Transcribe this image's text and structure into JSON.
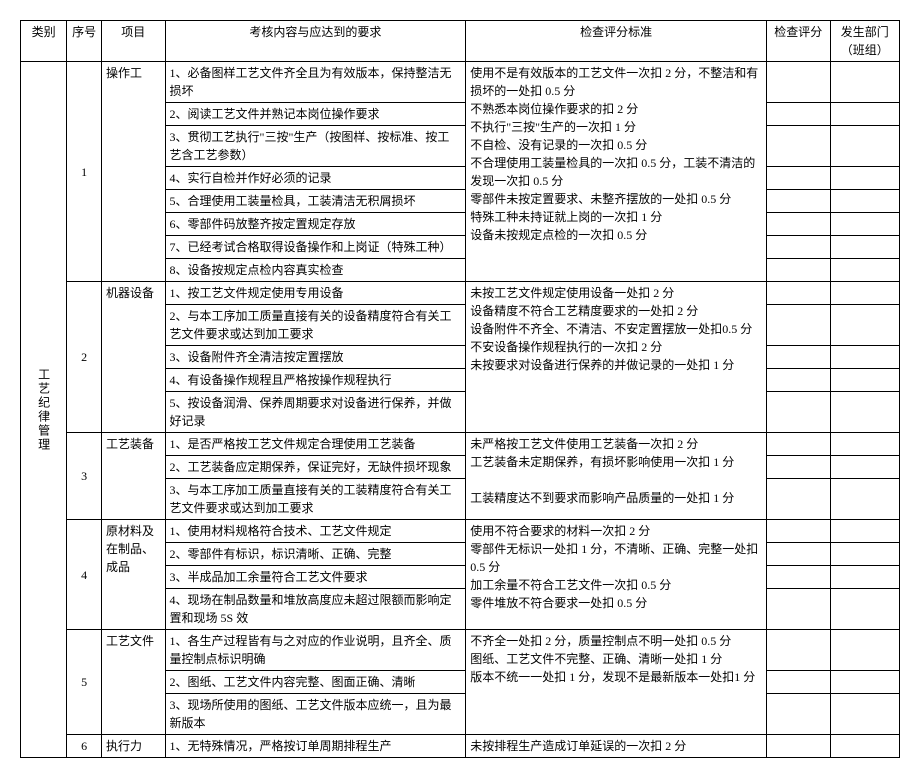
{
  "headers": {
    "category": "类别",
    "seq": "序号",
    "project": "项目",
    "requirement": "考核内容与应达到的要求",
    "standard": "检查评分标准",
    "score": "检查评分",
    "dept": "发生部门（班组）"
  },
  "category": "工艺纪律管理",
  "sections": [
    {
      "seq": "1",
      "project": "操作工",
      "reqs": [
        "1、必备图样工艺文件齐全且为有效版本，保持整洁无损坏",
        "2、阅读工艺文件并熟记本岗位操作要求",
        "3、贯彻工艺执行\"三按\"生产（按图样、按标准、按工艺含工艺参数）",
        "4、实行自检并作好必须的记录",
        "5、合理使用工装量检具，工装清洁无积屑损坏",
        "6、零部件码放整齐按定置规定存放",
        "7、已经考试合格取得设备操作和上岗证（特殊工种）",
        "8、设备按规定点检内容真实检查"
      ],
      "std": "使用不是有效版本的工艺文件一次扣 2 分，不整洁和有损坏的一处扣 0.5 分\n不熟悉本岗位操作要求的扣 2 分\n不执行\"三按\"生产的一次扣 1 分\n不自检、没有记录的一次扣 0.5 分\n不合理使用工装量检具的一次扣 0.5 分，工装不清洁的发现一次扣 0.5 分\n零部件未按定置要求、未整齐摆放的一处扣 0.5 分\n特殊工种未持证就上岗的一次扣 1 分\n设备未按规定点检的一次扣 0.5 分"
    },
    {
      "seq": "2",
      "project": "机器设备",
      "reqs": [
        "1、按工艺文件规定使用专用设备",
        "2、与本工序加工质量直接有关的设备精度符合有关工艺文件要求或达到加工要求",
        "3、设备附件齐全清洁按定置摆放",
        "4、有设备操作规程且严格按操作规程执行",
        "5、按设备润滑、保养周期要求对设备进行保养，并做好记录"
      ],
      "std": "未按工艺文件规定使用设备一处扣 2 分\n设备精度不符合工艺精度要求的一处扣 2 分\n设备附件不齐全、不清洁、不安定置摆放一处扣0.5 分\n不安设备操作规程执行的一次扣 2 分\n未按要求对设备进行保养的并做记录的一处扣 1 分"
    },
    {
      "seq": "3",
      "project": "工艺装备",
      "reqs": [
        "1、是否严格按工艺文件规定合理使用工艺装备",
        "2、工艺装备应定期保养，保证完好，无缺件损坏现象",
        "3、与本工序加工质量直接有关的工装精度符合有关工艺文件要求或达到加工要求"
      ],
      "std": "未严格按工艺文件使用工艺装备一次扣 2 分\n工艺装备未定期保养，有损坏影响使用一次扣 1 分\n\n工装精度达不到要求而影响产品质量的一处扣 1 分"
    },
    {
      "seq": "4",
      "project": "原材料及在制品、成品",
      "reqs": [
        "1、使用材料规格符合技术、工艺文件规定",
        "2、零部件有标识，标识清晰、正确、完整",
        "3、半成品加工余量符合工艺文件要求",
        "4、现场在制品数量和堆放高度应未超过限额而影响定置和现场 5S 效"
      ],
      "std": "使用不符合要求的材料一次扣 2 分\n零部件无标识一处扣 1 分，不清晰、正确、完整一处扣 0.5 分\n加工余量不符合工艺文件一次扣 0.5 分\n零件堆放不符合要求一处扣 0.5 分"
    },
    {
      "seq": "5",
      "project": "工艺文件",
      "reqs": [
        "1、各生产过程皆有与之对应的作业说明，且齐全、质量控制点标识明确",
        "2、图纸、工艺文件内容完整、图面正确、清晰",
        "3、现场所使用的图纸、工艺文件版本应统一，且为最新版本"
      ],
      "std": "不齐全一处扣 2 分，质量控制点不明一处扣 0.5 分\n图纸、工艺文件不完整、正确、清晰一处扣 1 分\n版本不统一一处扣 1 分，发现不是最新版本一处扣1 分"
    },
    {
      "seq": "6",
      "project": "执行力",
      "reqs": [
        "1、无特殊情况，严格按订单周期排程生产"
      ],
      "std": "未按排程生产造成订单延误的一次扣 2 分"
    }
  ]
}
